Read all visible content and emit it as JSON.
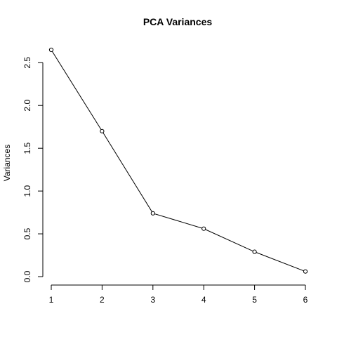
{
  "chart_data": {
    "type": "line",
    "title": "PCA Variances",
    "xlabel": "",
    "ylabel": "Variances",
    "x": [
      1,
      2,
      3,
      4,
      5,
      6
    ],
    "series": [
      {
        "values": [
          2.65,
          1.7,
          0.74,
          0.56,
          0.29,
          0.06
        ]
      }
    ],
    "xlim": [
      1,
      6
    ],
    "ylim": [
      0,
      2.65
    ],
    "xticks": [
      "1",
      "2",
      "3",
      "4",
      "5",
      "6"
    ],
    "yticks": [
      "0.0",
      "0.5",
      "1.0",
      "1.5",
      "2.0",
      "2.5"
    ],
    "grid": false,
    "legend": "none",
    "line_color": "#000000",
    "marker": "open-circle"
  }
}
